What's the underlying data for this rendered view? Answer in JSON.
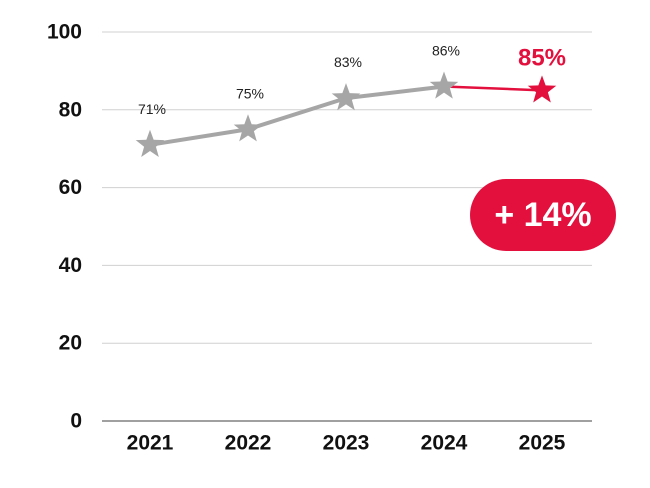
{
  "chart_data": {
    "type": "line",
    "categories": [
      "2021",
      "2022",
      "2023",
      "2024",
      "2025"
    ],
    "values": [
      71,
      75,
      83,
      86,
      85
    ],
    "data_labels": [
      "71%",
      "75%",
      "83%",
      "86%",
      "85%"
    ],
    "highlight_index": 4,
    "ylim": [
      0,
      100
    ],
    "yticks": [
      "0",
      "20",
      "40",
      "60",
      "80",
      "100"
    ],
    "grid": true,
    "marker": "star",
    "colors": {
      "series": "#a6a6a6",
      "highlight": "#e3103e",
      "grid": "#d0d0d0",
      "axis": "#808080"
    },
    "badge": "+ 14%"
  }
}
